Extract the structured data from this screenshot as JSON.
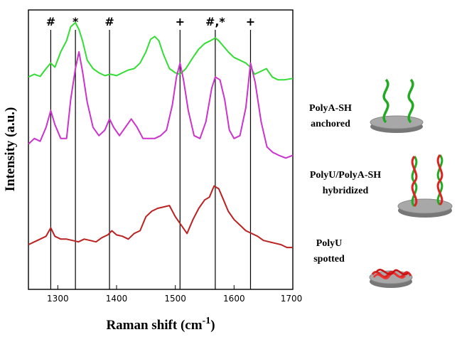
{
  "chart_data": {
    "type": "line",
    "xlabel": "Raman shift (cm",
    "xlabel_sup": "-1",
    "xlabel_close": ")",
    "ylabel": "Intensity (a.u.)",
    "xlim": [
      1250,
      1700
    ],
    "ylim": [
      0,
      10
    ],
    "xticks": [
      1300,
      1400,
      1500,
      1600,
      1700
    ],
    "xtick_labels": [
      "1300",
      "1400",
      "1500",
      "1600",
      "1700"
    ],
    "markers": [
      {
        "x": 1288,
        "label": "#"
      },
      {
        "x": 1330,
        "label": "*"
      },
      {
        "x": 1388,
        "label": "#"
      },
      {
        "x": 1508,
        "label": "+"
      },
      {
        "x": 1568,
        "label": "#,*"
      },
      {
        "x": 1628,
        "label": "+"
      }
    ],
    "series": [
      {
        "color": "#33dd33",
        "x": [
          1250,
          1260,
          1270,
          1280,
          1288,
          1295,
          1305,
          1315,
          1322,
          1330,
          1336,
          1342,
          1350,
          1360,
          1370,
          1380,
          1390,
          1400,
          1410,
          1420,
          1430,
          1440,
          1450,
          1458,
          1465,
          1472,
          1480,
          1490,
          1500,
          1508,
          1518,
          1530,
          1540,
          1550,
          1560,
          1568,
          1574,
          1580,
          1590,
          1600,
          1610,
          1620,
          1628,
          1635,
          1645,
          1655,
          1665,
          1675,
          1685,
          1700
        ],
        "y": [
          7.6,
          7.7,
          7.62,
          7.9,
          8.1,
          7.95,
          8.5,
          8.9,
          9.4,
          9.55,
          9.3,
          8.9,
          8.2,
          7.9,
          7.75,
          7.65,
          7.7,
          7.65,
          7.75,
          7.85,
          7.9,
          8.1,
          8.5,
          8.95,
          9.05,
          8.9,
          8.4,
          7.9,
          7.75,
          7.7,
          7.9,
          8.3,
          8.6,
          8.8,
          8.9,
          9.0,
          8.9,
          8.75,
          8.5,
          8.3,
          8.2,
          8.1,
          7.95,
          7.7,
          7.8,
          7.9,
          7.6,
          7.5,
          7.5,
          7.55
        ]
      },
      {
        "color": "#cc33cc",
        "x": [
          1250,
          1260,
          1270,
          1280,
          1288,
          1295,
          1305,
          1315,
          1322,
          1330,
          1336,
          1342,
          1350,
          1360,
          1370,
          1380,
          1388,
          1395,
          1405,
          1415,
          1425,
          1435,
          1445,
          1455,
          1465,
          1475,
          1485,
          1495,
          1502,
          1508,
          1514,
          1522,
          1532,
          1542,
          1552,
          1562,
          1568,
          1576,
          1584,
          1592,
          1600,
          1610,
          1620,
          1628,
          1636,
          1646,
          1656,
          1666,
          1676,
          1688,
          1700
        ],
        "y": [
          5.2,
          5.4,
          5.3,
          5.8,
          6.4,
          5.9,
          5.4,
          5.4,
          6.8,
          7.9,
          8.5,
          7.8,
          6.7,
          5.8,
          5.5,
          5.7,
          6.1,
          5.8,
          5.5,
          5.8,
          6.1,
          5.8,
          5.4,
          5.4,
          5.4,
          5.5,
          5.7,
          6.6,
          7.6,
          8.1,
          7.5,
          6.4,
          5.5,
          5.4,
          6.0,
          7.2,
          7.6,
          7.5,
          6.8,
          5.7,
          5.4,
          5.5,
          6.5,
          8.1,
          7.4,
          6.0,
          5.1,
          4.9,
          4.8,
          4.7,
          4.8
        ]
      },
      {
        "color": "#bb2222",
        "x": [
          1250,
          1260,
          1270,
          1280,
          1288,
          1295,
          1305,
          1315,
          1325,
          1335,
          1345,
          1355,
          1365,
          1375,
          1385,
          1392,
          1400,
          1410,
          1420,
          1430,
          1440,
          1450,
          1460,
          1470,
          1480,
          1490,
          1500,
          1510,
          1520,
          1530,
          1540,
          1550,
          1558,
          1566,
          1574,
          1582,
          1590,
          1600,
          1610,
          1620,
          1630,
          1640,
          1650,
          1660,
          1670,
          1680,
          1690,
          1700
        ],
        "y": [
          1.6,
          1.7,
          1.8,
          1.9,
          2.2,
          1.9,
          1.8,
          1.8,
          1.75,
          1.7,
          1.8,
          1.75,
          1.7,
          1.85,
          1.95,
          2.1,
          1.95,
          1.9,
          1.8,
          2.0,
          2.1,
          2.6,
          2.8,
          2.9,
          2.95,
          3.0,
          2.6,
          2.3,
          2.0,
          2.5,
          2.9,
          3.2,
          3.3,
          3.7,
          3.6,
          3.2,
          2.8,
          2.5,
          2.3,
          2.1,
          2.0,
          1.9,
          1.75,
          1.7,
          1.65,
          1.6,
          1.5,
          1.5
        ]
      }
    ],
    "samples": [
      {
        "line1": "PolyA-SH",
        "line2": "anchored"
      },
      {
        "line1": "PolyU/PolyA-SH",
        "line2": "hybridized"
      },
      {
        "line1": "PolyU",
        "line2": "spotted"
      }
    ]
  }
}
